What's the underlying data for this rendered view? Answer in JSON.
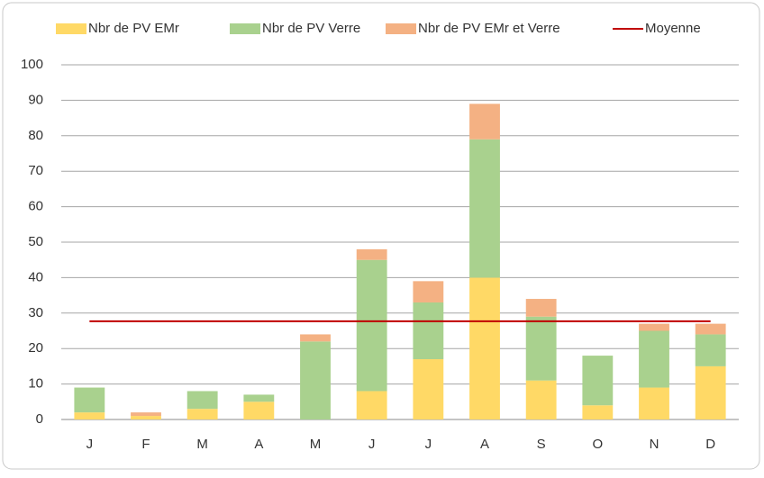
{
  "chart_data": {
    "type": "bar",
    "stacked": true,
    "categories": [
      "J",
      "F",
      "M",
      "A",
      "M",
      "J",
      "J",
      "A",
      "S",
      "O",
      "N",
      "D"
    ],
    "series": [
      {
        "name": "Nbr de PV EMr",
        "color": "#ffd966",
        "values": [
          2,
          1,
          3,
          5,
          0,
          8,
          17,
          40,
          11,
          4,
          9,
          15
        ]
      },
      {
        "name": "Nbr de PV Verre",
        "color": "#a9d18e",
        "values": [
          7,
          0,
          5,
          2,
          22,
          37,
          16,
          39,
          18,
          14,
          16,
          9
        ]
      },
      {
        "name": "Nbr de PV EMr et Verre",
        "color": "#f4b183",
        "values": [
          0,
          1,
          0,
          0,
          2,
          3,
          6,
          10,
          5,
          0,
          2,
          3
        ]
      },
      {
        "name": "Moyenne",
        "color": "#c00000",
        "type": "line",
        "values": [
          27.7,
          27.7,
          27.7,
          27.7,
          27.7,
          27.7,
          27.7,
          27.7,
          27.7,
          27.7,
          27.7,
          27.7
        ]
      }
    ],
    "ylim": [
      0,
      100
    ],
    "yticks": [
      0,
      10,
      20,
      30,
      40,
      50,
      60,
      70,
      80,
      90,
      100
    ],
    "grid": true,
    "legend": "top"
  }
}
